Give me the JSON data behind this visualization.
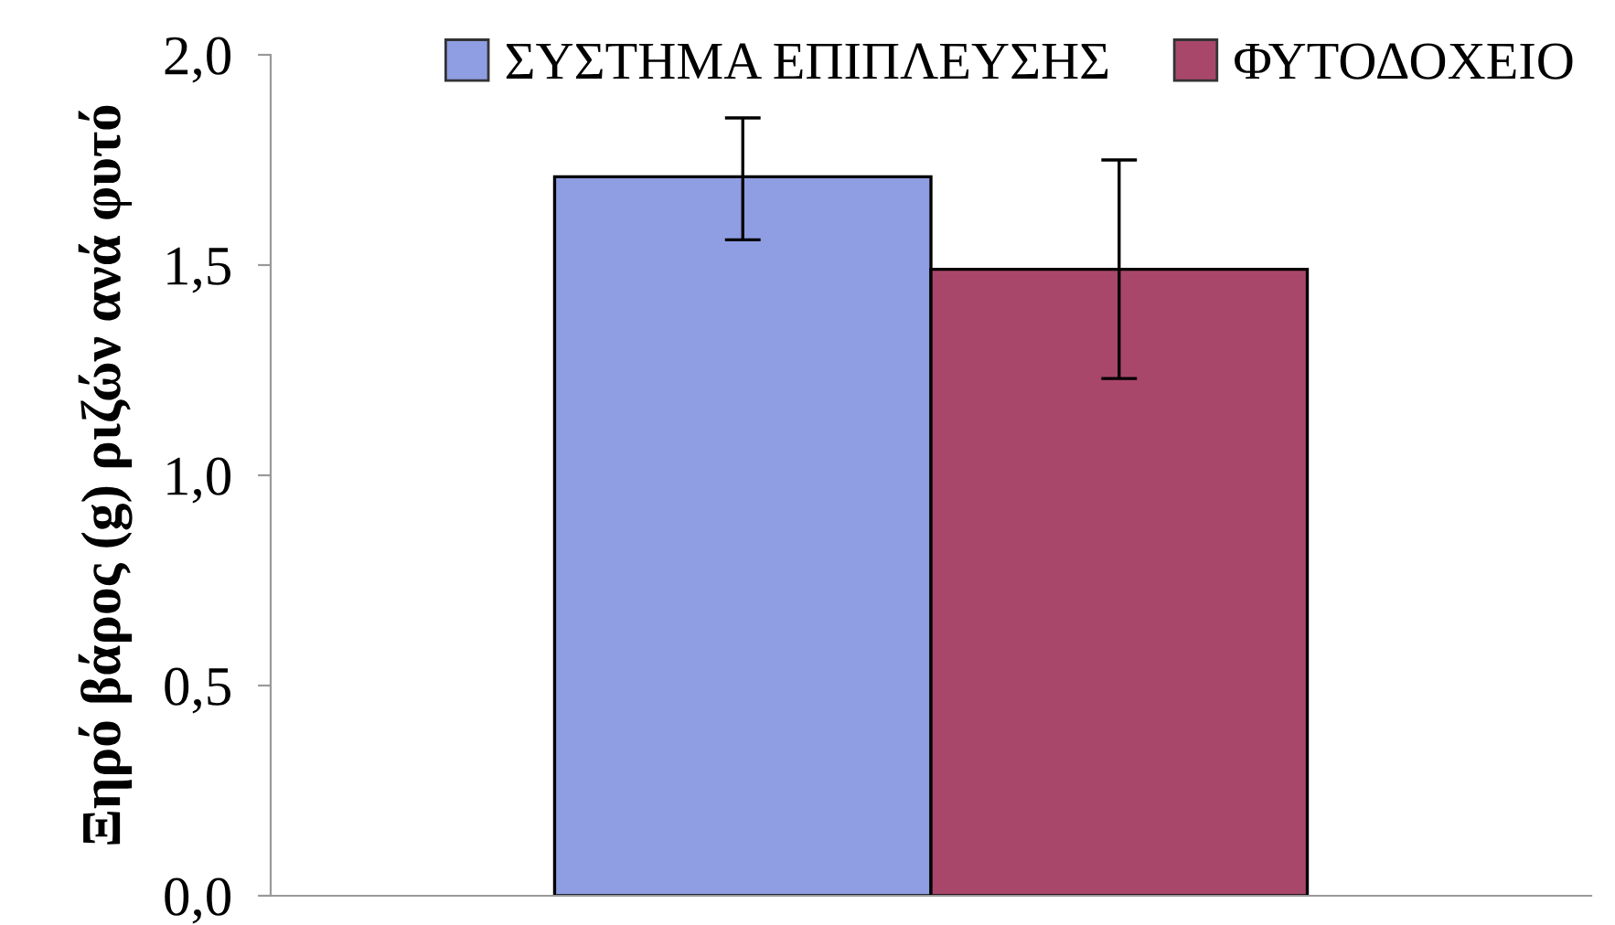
{
  "chart_data": {
    "type": "bar",
    "ylabel": "Ξηρό βάρος (g) ριζών ανά φυτό",
    "categories": [
      null
    ],
    "series": [
      {
        "name": "ΣΥΣΤΗΜΑ ΕΠΙΠΛΕΥΣΗΣ",
        "color": "#8f9de2",
        "values": [
          1.71
        ],
        "errors": [
          [
            1.56,
            1.85
          ]
        ]
      },
      {
        "name": "ΦΥΤΟΔΟΧΕΙΟ",
        "color": "#a9476a",
        "values": [
          1.49
        ],
        "errors": [
          [
            1.23,
            1.75
          ]
        ]
      }
    ],
    "ylim": [
      0,
      2
    ],
    "yticks": [
      {
        "value": 0,
        "label": "0,0"
      },
      {
        "value": 0.5,
        "label": "0,5"
      },
      {
        "value": 1,
        "label": "1,0"
      },
      {
        "value": 1.5,
        "label": "1,5"
      },
      {
        "value": 2,
        "label": "2,0"
      }
    ],
    "legend": "top",
    "grid": false
  }
}
